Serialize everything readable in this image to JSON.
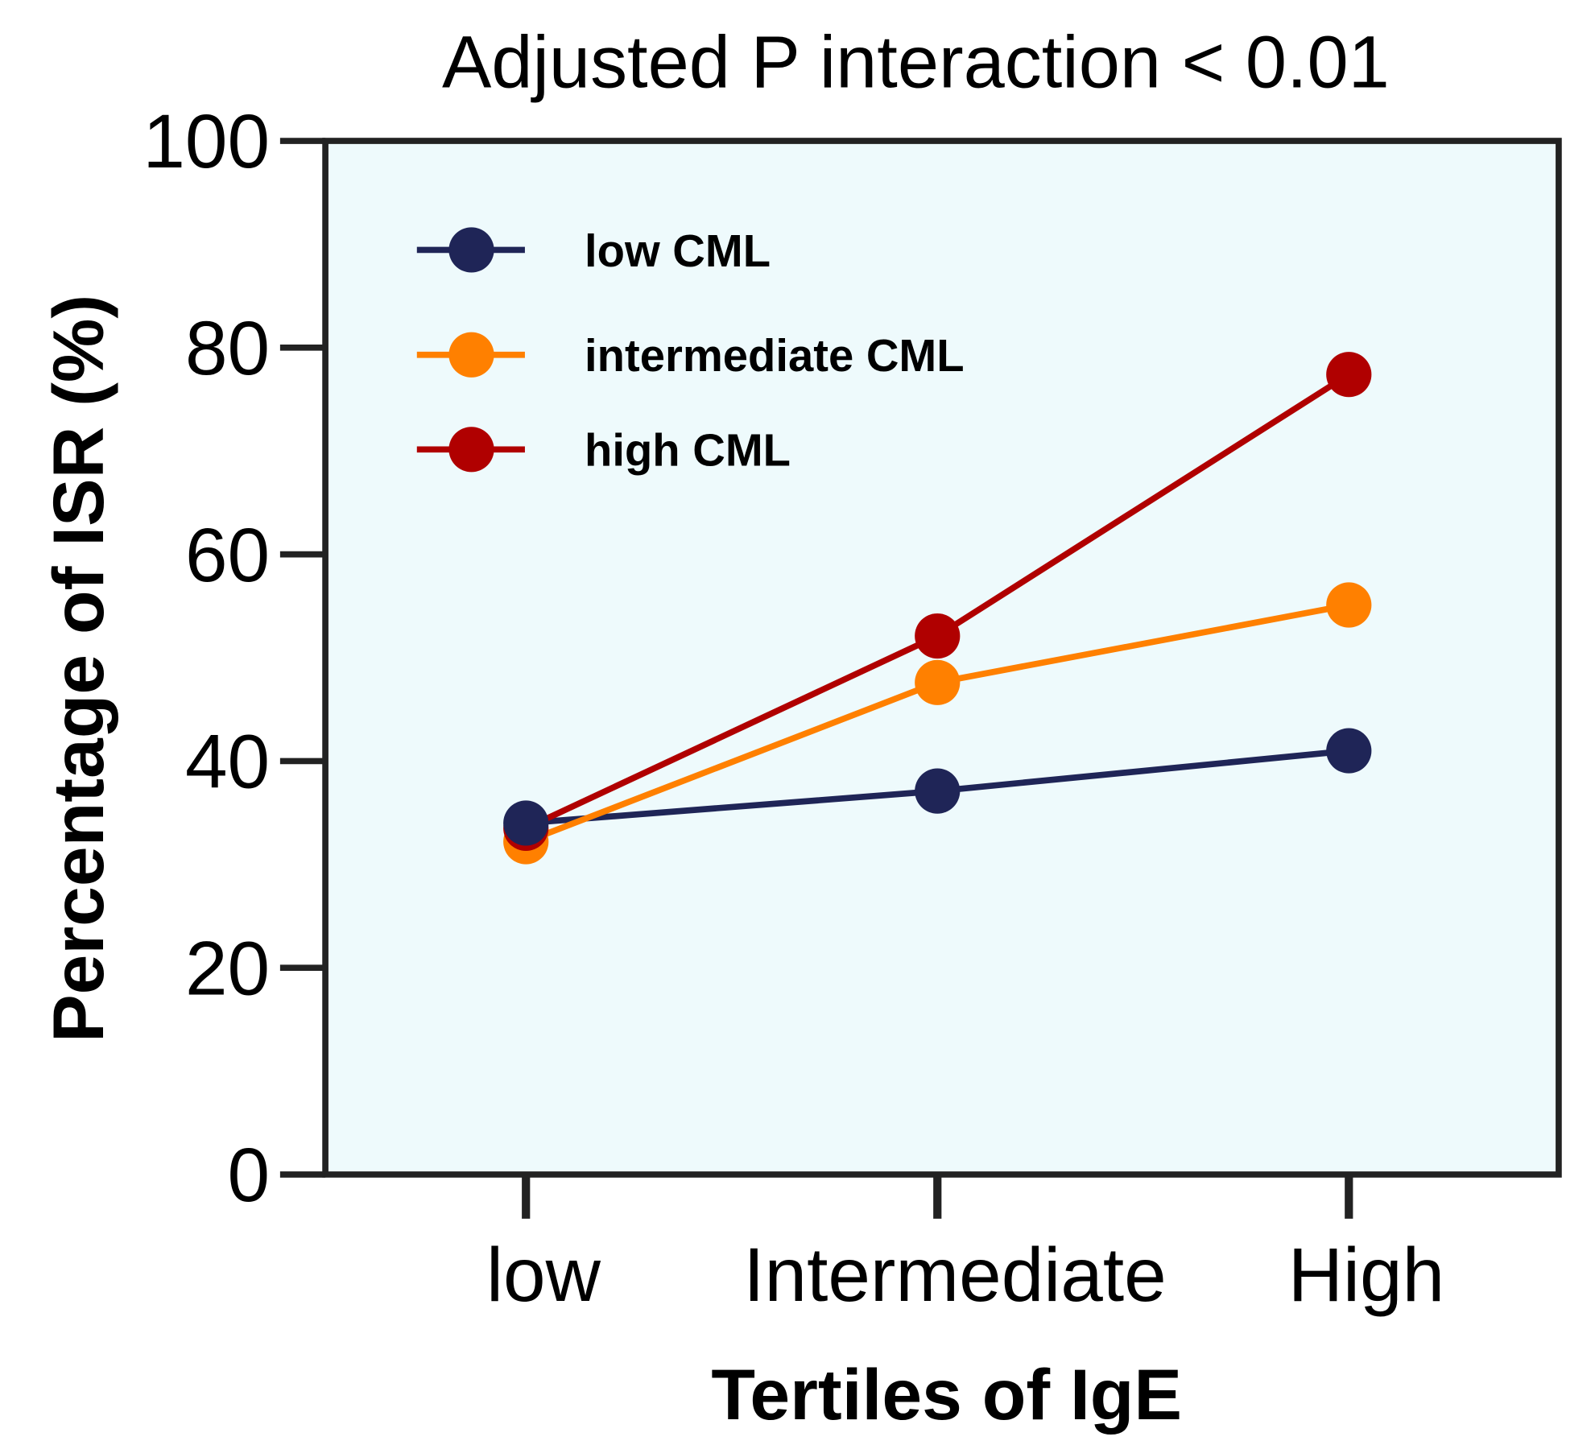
{
  "chart_data": {
    "type": "line",
    "title": "Adjusted P interaction < 0.01",
    "xlabel": "Tertiles of IgE",
    "ylabel": "Percentage of ISR (%)",
    "categories": [
      "low",
      "Intermediate",
      "High"
    ],
    "ylim": [
      0,
      100
    ],
    "yticks": [
      "0",
      "20",
      "40",
      "60",
      "80",
      "100"
    ],
    "grid": false,
    "legend_position": "top-left",
    "plot_background": "#eefafc",
    "series": [
      {
        "name": "low CML",
        "color": "#1f2557",
        "values": [
          34.0,
          37.1,
          41.0
        ]
      },
      {
        "name": "intermediate CML",
        "color": "#ff8000",
        "values": [
          32.2,
          47.6,
          55.1
        ]
      },
      {
        "name": "high CML",
        "color": "#b00000",
        "values": [
          33.5,
          52.1,
          77.4
        ]
      }
    ]
  }
}
